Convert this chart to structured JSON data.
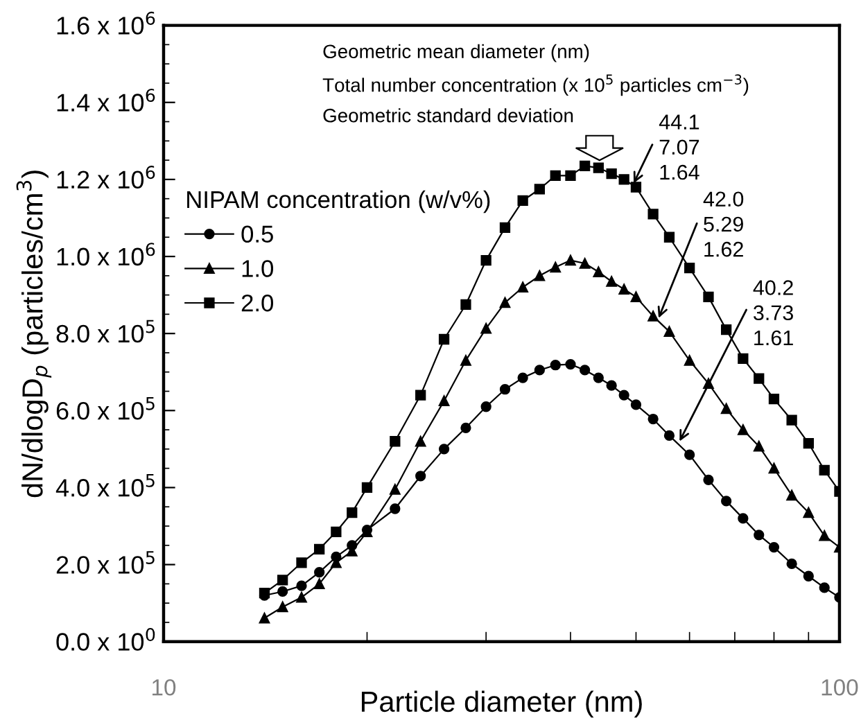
{
  "chart_data": {
    "type": "line",
    "xlabel": "Particle diameter (nm)",
    "ylabel": "dN/dlogD$_{p}$ (particles/cm$^{3}$)",
    "legend_title": "NIPAM concentration (w/v%)",
    "legend": "left",
    "log": "x",
    "grid": false,
    "x": [
      14.1,
      15,
      16,
      17,
      18,
      19,
      20,
      22,
      24,
      26,
      28,
      30,
      32,
      34,
      36,
      38,
      40,
      42,
      44,
      46,
      48,
      50,
      53,
      56,
      60,
      64,
      68,
      72,
      76,
      80,
      85,
      90,
      95,
      100
    ],
    "xlim": [
      10,
      100
    ],
    "xticks": [
      10,
      100
    ],
    "ylim": [
      0,
      1600000
    ],
    "yticks": [
      {
        "value": 0,
        "label": "0.0 x 10$^{0}$"
      },
      {
        "value": 200000,
        "label": "2.0 x 10$^{5}$"
      },
      {
        "value": 400000,
        "label": "4.0 x 10$^{5}$"
      },
      {
        "value": 600000,
        "label": "6.0 x 10$^{5}$"
      },
      {
        "value": 800000,
        "label": "8.0 x 10$^{5}$"
      },
      {
        "value": 1000000,
        "label": "1.0 x 10$^{6}$"
      },
      {
        "value": 1200000,
        "label": "1.2 x 10$^{6}$"
      },
      {
        "value": 1400000,
        "label": "1.4 x 10$^{6}$"
      },
      {
        "value": 1600000,
        "label": "1.6 x 10$^{6}$"
      }
    ],
    "series": [
      {
        "name": "0.5",
        "color": "#000000",
        "marker": "circle",
        "values": [
          120000,
          130000,
          145000,
          180000,
          220000,
          250000,
          290000,
          345000,
          430000,
          500000,
          555000,
          610000,
          655000,
          685000,
          705000,
          718000,
          720000,
          705000,
          685000,
          665000,
          640000,
          615000,
          578000,
          535000,
          485000,
          420000,
          365000,
          320000,
          277000,
          245000,
          202000,
          170000,
          140000,
          115000
        ]
      },
      {
        "name": "1.0",
        "color": "#000000",
        "marker": "triangle",
        "values": [
          61000,
          90000,
          115000,
          150000,
          205000,
          235000,
          285000,
          395000,
          520000,
          625000,
          730000,
          813000,
          880000,
          920000,
          950000,
          972000,
          990000,
          982000,
          960000,
          935000,
          915000,
          895000,
          845000,
          805000,
          730000,
          670000,
          605000,
          550000,
          507000,
          450000,
          380000,
          335000,
          275000,
          245000
        ]
      },
      {
        "name": "2.0",
        "color": "#000000",
        "marker": "square",
        "values": [
          126000,
          160000,
          205000,
          240000,
          285000,
          335000,
          400000,
          520000,
          640000,
          785000,
          875000,
          990000,
          1075000,
          1145000,
          1175000,
          1210000,
          1210000,
          1235000,
          1230000,
          1215000,
          1200000,
          1180000,
          1110000,
          1050000,
          970000,
          895000,
          810000,
          735000,
          683000,
          630000,
          575000,
          515000,
          445000,
          390000
        ]
      }
    ],
    "annotations": [
      "Geometric mean diameter (nm)",
      "Total number concentration (x 10$^{5}$ particles cm$^{−3}$)",
      "Geometric standard deviation",
      {
        "text": "44.1\n7.07\n1.64",
        "x": 49.6,
        "y": 1190000
      },
      {
        "text": "42.0\n5.29\n1.62",
        "x": 54,
        "y": 840000
      },
      {
        "text": "40.2\n3.73\n1.61",
        "x": 58,
        "y": 520000
      }
    ]
  }
}
